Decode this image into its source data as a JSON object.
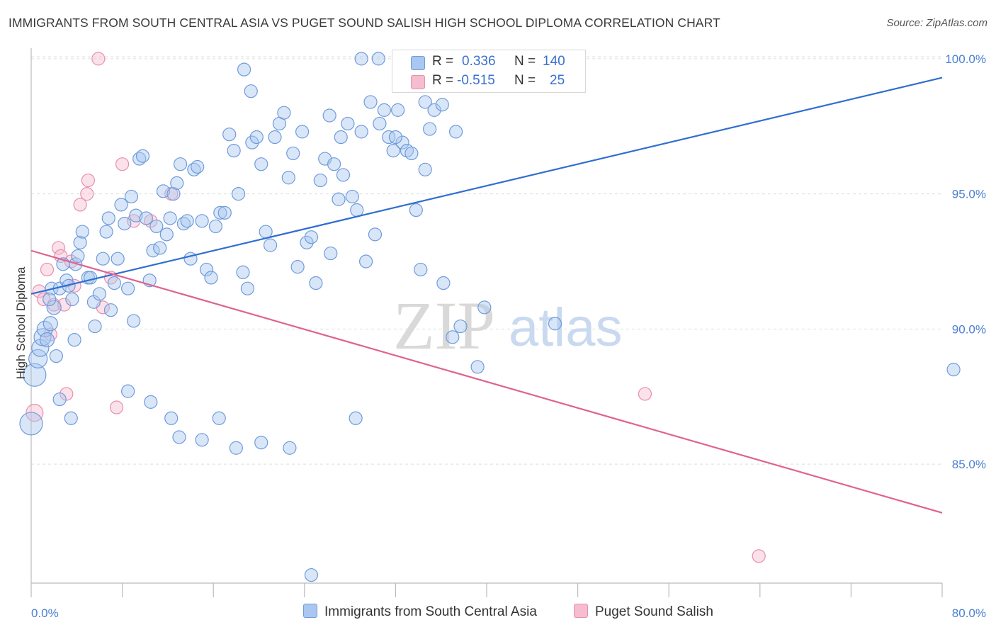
{
  "header": {
    "title": "IMMIGRANTS FROM SOUTH CENTRAL ASIA VS PUGET SOUND SALISH HIGH SCHOOL DIPLOMA CORRELATION CHART",
    "source": "Source: ZipAtlas.com"
  },
  "watermark": {
    "zip": "ZIP",
    "atlas": "atlas"
  },
  "legend": {
    "rows": [
      {
        "r_label": "R =",
        "r_value": "0.336",
        "n_label": "N =",
        "n_value": "140"
      },
      {
        "r_label": "R =",
        "r_value": "-0.515",
        "n_label": "N =",
        "n_value": "25"
      }
    ]
  },
  "colors": {
    "blue_fill": "#a9c7f0",
    "blue_stroke": "#6f9bdb",
    "blue_line": "#2f6fd0",
    "pink_fill": "#f6bdd0",
    "pink_stroke": "#e88fae",
    "pink_line": "#e0628f",
    "grid": "#dddddd",
    "tick_text": "#4a7fd1"
  },
  "chart_data": {
    "type": "scatter",
    "title": "IMMIGRANTS FROM SOUTH CENTRAL ASIA VS PUGET SOUND SALISH HIGH SCHOOL DIPLOMA CORRELATION CHART",
    "xlabel": "",
    "ylabel": "High School Diploma",
    "xlim": [
      0,
      80
    ],
    "ylim": [
      80.6,
      100.6
    ],
    "x_tick_labels": [
      "0.0%",
      "80.0%"
    ],
    "y_ticks": [
      85,
      90,
      95,
      100
    ],
    "y_tick_labels": [
      "85.0%",
      "90.0%",
      "95.0%",
      "100.0%"
    ],
    "grid": true,
    "legend_position": "top-center",
    "series": [
      {
        "name": "Immigrants from South Central Asia",
        "color": "#a9c7f0",
        "trend": {
          "x": [
            0,
            80
          ],
          "y": [
            91.3,
            99.3
          ]
        },
        "points": [
          [
            0.0,
            86.5,
            16
          ],
          [
            0.3,
            88.3,
            16
          ],
          [
            0.6,
            88.9,
            13
          ],
          [
            0.8,
            89.3,
            12
          ],
          [
            1.0,
            89.7,
            12
          ],
          [
            1.2,
            90.0,
            11
          ],
          [
            1.4,
            89.6,
            10
          ],
          [
            1.7,
            90.2,
            10
          ],
          [
            2.0,
            90.8,
            10
          ],
          [
            2.2,
            89.0,
            9
          ],
          [
            1.8,
            91.5,
            9
          ],
          [
            1.6,
            91.1,
            9
          ],
          [
            2.5,
            91.5,
            9
          ],
          [
            2.8,
            92.4,
            9
          ],
          [
            3.1,
            91.8,
            9
          ],
          [
            3.3,
            91.6,
            9
          ],
          [
            3.6,
            91.1,
            9
          ],
          [
            3.9,
            92.4,
            9
          ],
          [
            4.1,
            92.7,
            9
          ],
          [
            4.3,
            93.2,
            9
          ],
          [
            4.5,
            93.6,
            9
          ],
          [
            3.8,
            89.6,
            9
          ],
          [
            2.5,
            87.4,
            9
          ],
          [
            3.5,
            86.7,
            9
          ],
          [
            5.0,
            91.9,
            9
          ],
          [
            5.2,
            91.9,
            9
          ],
          [
            5.5,
            91.0,
            9
          ],
          [
            5.6,
            90.1,
            9
          ],
          [
            6.0,
            91.3,
            9
          ],
          [
            6.3,
            92.6,
            9
          ],
          [
            6.6,
            93.6,
            9
          ],
          [
            6.8,
            94.1,
            9
          ],
          [
            7.0,
            90.7,
            9
          ],
          [
            7.3,
            91.7,
            9
          ],
          [
            7.6,
            92.6,
            9
          ],
          [
            7.9,
            94.6,
            9
          ],
          [
            8.2,
            93.9,
            9
          ],
          [
            8.5,
            91.5,
            9
          ],
          [
            8.8,
            94.9,
            9
          ],
          [
            9.0,
            90.3,
            9
          ],
          [
            9.2,
            94.2,
            9
          ],
          [
            9.5,
            96.3,
            9
          ],
          [
            9.8,
            96.4,
            9
          ],
          [
            10.1,
            94.1,
            9
          ],
          [
            10.4,
            91.8,
            9
          ],
          [
            10.7,
            92.9,
            9
          ],
          [
            11.0,
            93.8,
            9
          ],
          [
            11.3,
            93.0,
            9
          ],
          [
            11.6,
            95.1,
            9
          ],
          [
            11.9,
            93.5,
            9
          ],
          [
            12.2,
            94.1,
            9
          ],
          [
            12.5,
            95.0,
            9
          ],
          [
            12.8,
            95.4,
            9
          ],
          [
            13.1,
            96.1,
            9
          ],
          [
            13.4,
            93.9,
            9
          ],
          [
            13.7,
            94.0,
            9
          ],
          [
            14.0,
            92.6,
            9
          ],
          [
            14.3,
            95.9,
            9
          ],
          [
            14.6,
            96.0,
            9
          ],
          [
            15.0,
            94.0,
            9
          ],
          [
            15.4,
            92.2,
            9
          ],
          [
            15.8,
            91.9,
            9
          ],
          [
            16.2,
            93.8,
            9
          ],
          [
            16.6,
            94.3,
            9
          ],
          [
            17.0,
            94.3,
            9
          ],
          [
            17.4,
            97.2,
            9
          ],
          [
            17.8,
            96.6,
            9
          ],
          [
            18.2,
            95.0,
            9
          ],
          [
            18.6,
            92.1,
            9
          ],
          [
            19.0,
            91.5,
            9
          ],
          [
            19.4,
            96.9,
            9
          ],
          [
            19.8,
            97.1,
            9
          ],
          [
            20.2,
            96.1,
            9
          ],
          [
            20.6,
            93.6,
            9
          ],
          [
            21.0,
            93.1,
            9
          ],
          [
            21.4,
            97.1,
            9
          ],
          [
            21.8,
            97.6,
            9
          ],
          [
            22.2,
            98.0,
            9
          ],
          [
            22.6,
            95.6,
            9
          ],
          [
            23.0,
            96.5,
            9
          ],
          [
            23.4,
            92.3,
            9
          ],
          [
            23.8,
            97.3,
            9
          ],
          [
            24.2,
            93.2,
            9
          ],
          [
            24.6,
            93.4,
            9
          ],
          [
            25.0,
            91.7,
            9
          ],
          [
            25.4,
            95.5,
            9
          ],
          [
            25.8,
            96.3,
            9
          ],
          [
            26.2,
            97.9,
            9
          ],
          [
            26.6,
            96.1,
            9
          ],
          [
            27.0,
            94.8,
            9
          ],
          [
            27.4,
            95.7,
            9
          ],
          [
            27.8,
            97.6,
            9
          ],
          [
            28.2,
            94.9,
            9
          ],
          [
            28.6,
            94.4,
            9
          ],
          [
            29.0,
            97.3,
            9
          ],
          [
            29.4,
            92.5,
            9
          ],
          [
            29.8,
            98.4,
            9
          ],
          [
            30.2,
            93.5,
            9
          ],
          [
            30.6,
            97.6,
            9
          ],
          [
            31.0,
            98.1,
            9
          ],
          [
            31.4,
            97.1,
            9
          ],
          [
            31.8,
            96.6,
            9
          ],
          [
            32.2,
            98.1,
            9
          ],
          [
            32.6,
            96.9,
            9
          ],
          [
            33.0,
            96.6,
            9
          ],
          [
            33.4,
            96.5,
            9
          ],
          [
            33.8,
            94.4,
            9
          ],
          [
            34.2,
            92.2,
            9
          ],
          [
            34.6,
            95.9,
            9
          ],
          [
            35.0,
            97.4,
            9
          ],
          [
            8.5,
            87.7,
            9
          ],
          [
            10.5,
            87.3,
            9
          ],
          [
            12.3,
            86.7,
            9
          ],
          [
            13.0,
            86.0,
            9
          ],
          [
            15.0,
            85.9,
            9
          ],
          [
            16.5,
            86.7,
            9
          ],
          [
            18.0,
            85.6,
            9
          ],
          [
            20.2,
            85.8,
            9
          ],
          [
            22.7,
            85.6,
            9
          ],
          [
            24.6,
            80.9,
            9
          ],
          [
            28.5,
            86.7,
            9
          ],
          [
            36.2,
            91.7,
            9
          ],
          [
            37.0,
            89.7,
            9
          ],
          [
            37.7,
            90.1,
            9
          ],
          [
            39.2,
            88.6,
            9
          ],
          [
            39.8,
            90.8,
            9
          ],
          [
            46.0,
            90.2,
            9
          ],
          [
            81.0,
            88.5,
            9
          ],
          [
            18.7,
            99.6,
            9
          ],
          [
            19.3,
            98.8,
            9
          ],
          [
            29.0,
            100.0,
            9
          ],
          [
            30.5,
            100.0,
            9
          ],
          [
            33.0,
            99.4,
            9
          ],
          [
            34.6,
            98.4,
            9
          ],
          [
            35.4,
            98.1,
            9
          ],
          [
            36.1,
            98.3,
            9
          ],
          [
            37.3,
            97.3,
            9
          ],
          [
            32.0,
            97.1,
            9
          ],
          [
            27.2,
            97.1,
            9
          ],
          [
            26.3,
            92.8,
            9
          ]
        ]
      },
      {
        "name": "Puget Sound Salish",
        "color": "#f6bdd0",
        "trend": {
          "x": [
            0,
            80
          ],
          "y": [
            92.9,
            83.2
          ]
        },
        "points": [
          [
            0.3,
            86.9,
            12
          ],
          [
            0.7,
            91.4,
            9
          ],
          [
            1.1,
            91.1,
            9
          ],
          [
            1.4,
            92.2,
            9
          ],
          [
            1.7,
            89.8,
            9
          ],
          [
            2.0,
            90.9,
            9
          ],
          [
            2.4,
            93.0,
            9
          ],
          [
            2.6,
            92.7,
            9
          ],
          [
            2.9,
            90.9,
            9
          ],
          [
            3.1,
            87.6,
            9
          ],
          [
            3.5,
            92.5,
            9
          ],
          [
            3.8,
            91.6,
            9
          ],
          [
            4.3,
            94.6,
            9
          ],
          [
            4.9,
            95.0,
            9
          ],
          [
            5.0,
            95.5,
            9
          ],
          [
            5.9,
            100.0,
            9
          ],
          [
            6.3,
            90.8,
            9
          ],
          [
            7.0,
            91.9,
            9
          ],
          [
            7.5,
            87.1,
            9
          ],
          [
            8.0,
            96.1,
            9
          ],
          [
            9.0,
            94.0,
            9
          ],
          [
            10.5,
            94.0,
            9
          ],
          [
            12.3,
            95.0,
            9
          ],
          [
            53.9,
            87.6,
            9
          ],
          [
            63.9,
            81.6,
            9
          ]
        ]
      }
    ]
  },
  "bottom_legend": {
    "series1": "Immigrants from South Central Asia",
    "series2": "Puget Sound Salish"
  }
}
